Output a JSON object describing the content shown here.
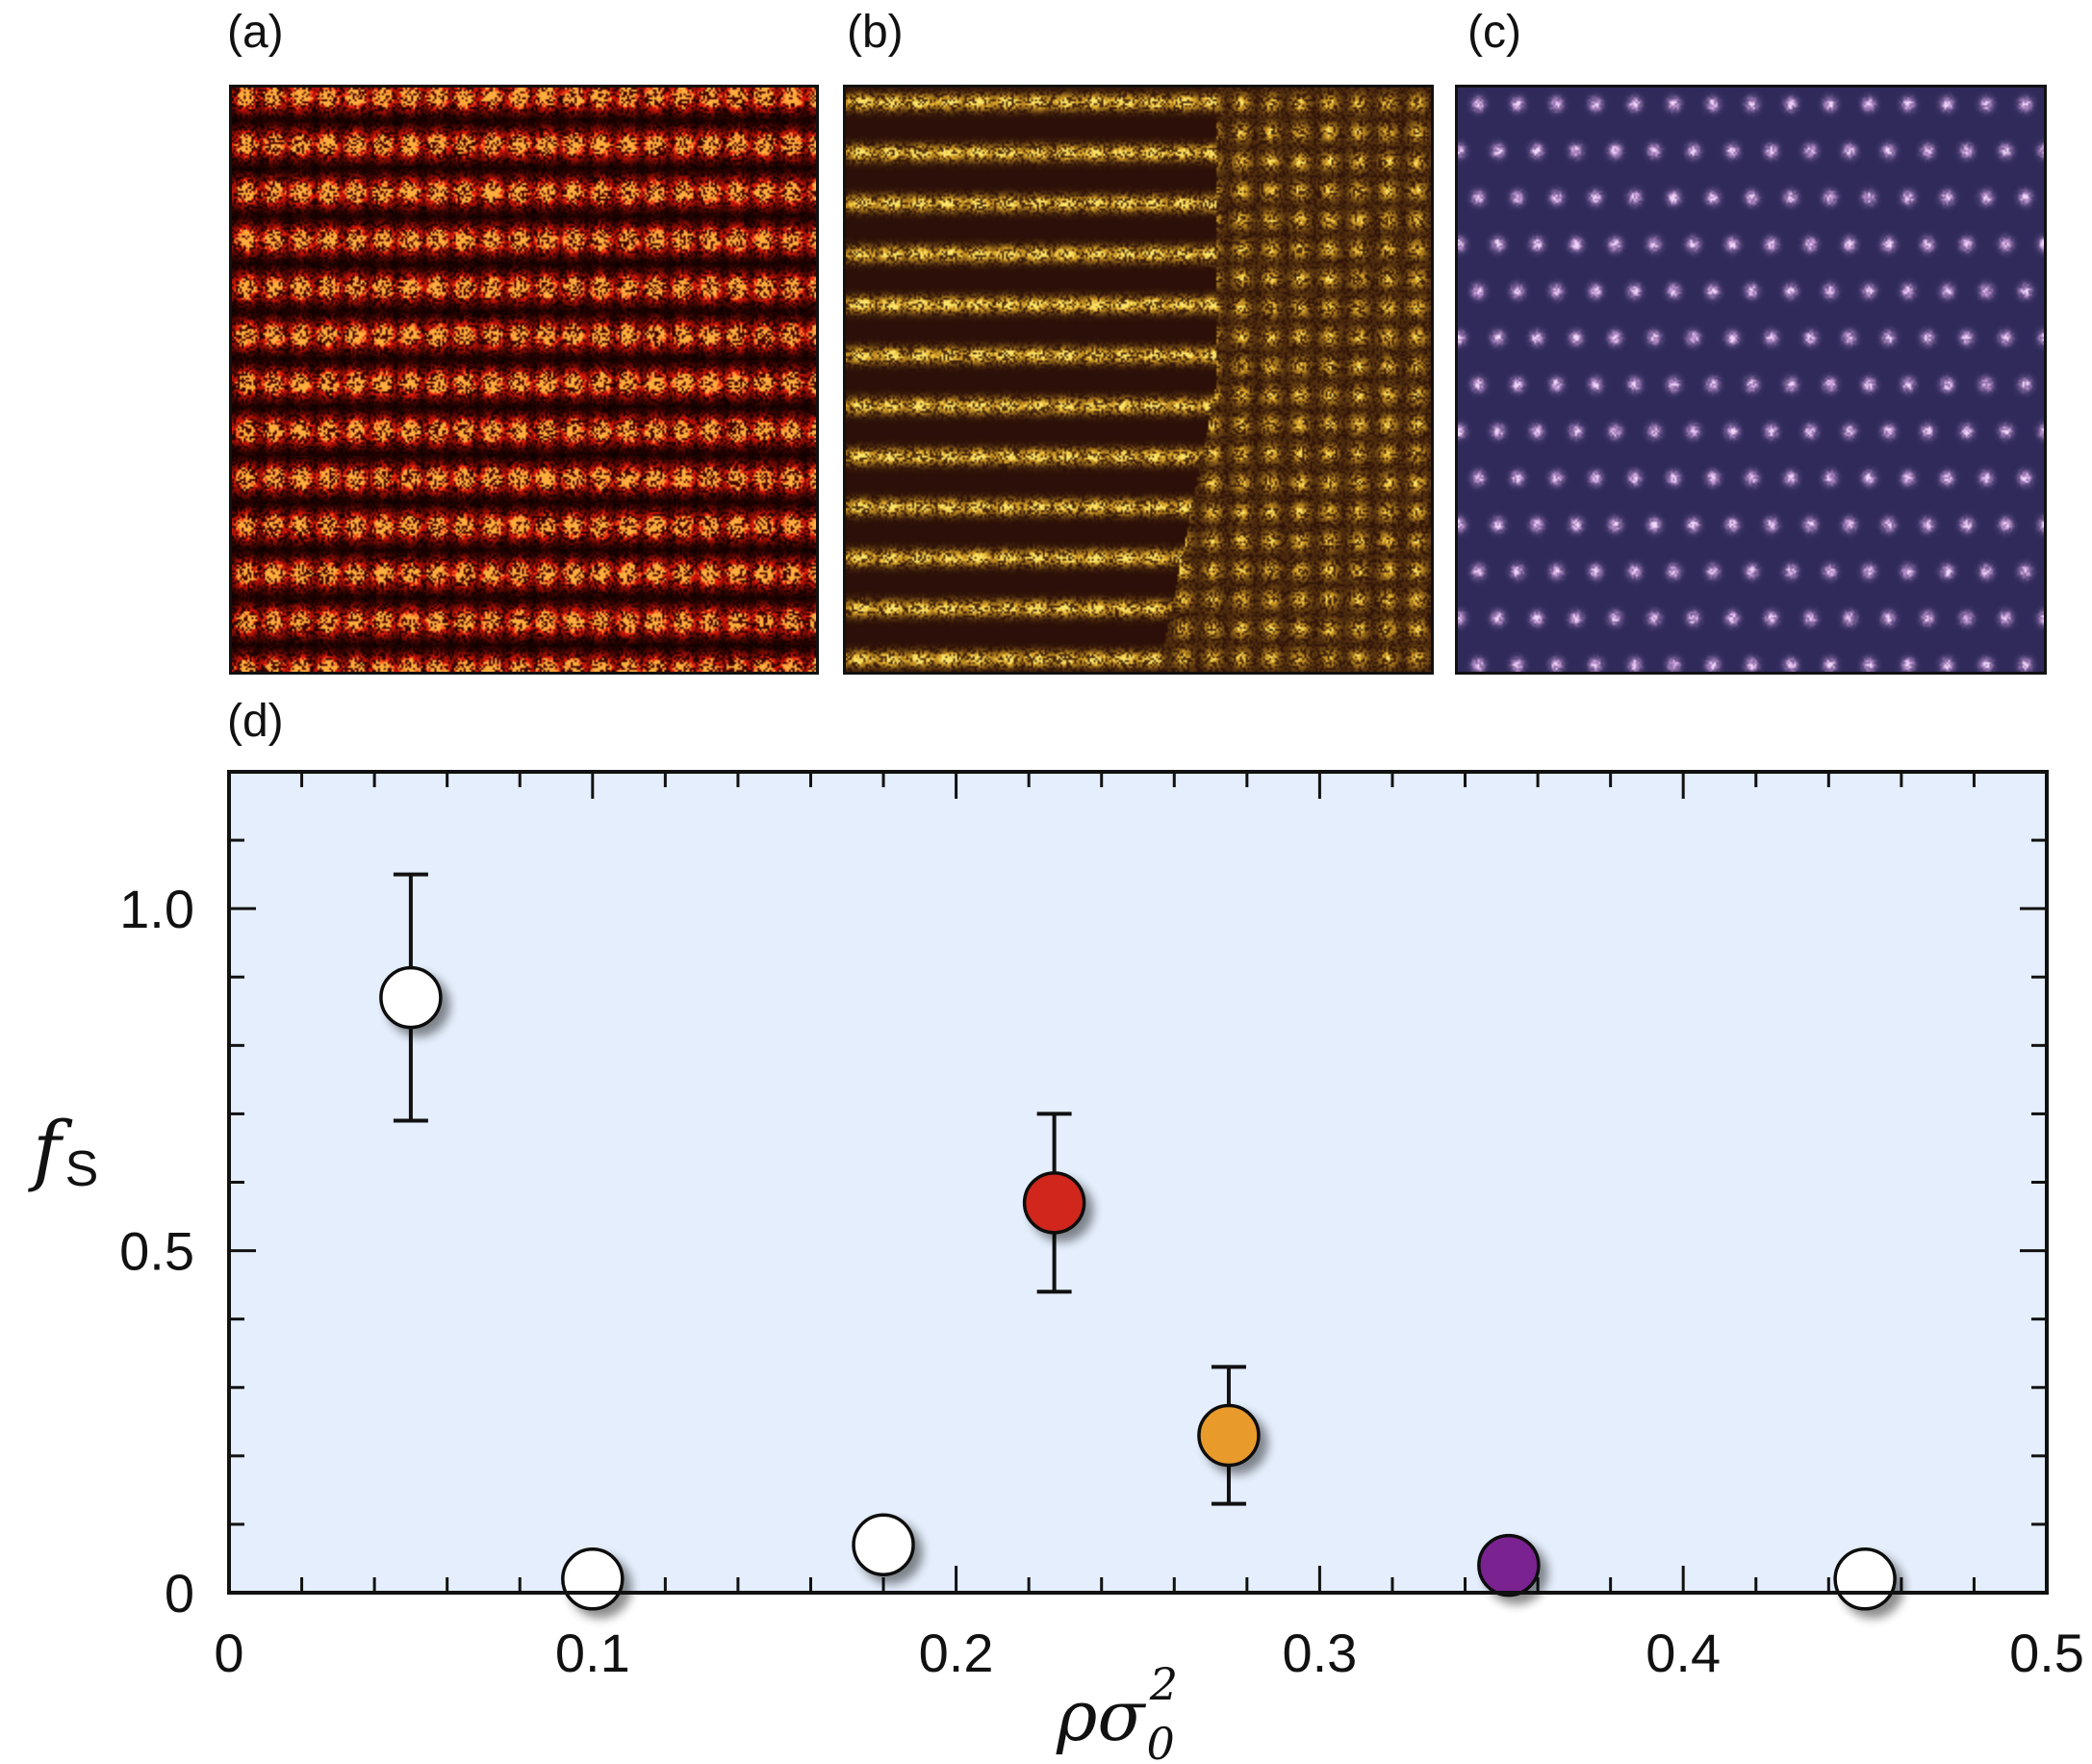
{
  "panels": {
    "a": {
      "label": "(a)",
      "base_color": "#0a0000",
      "dot_color": "#ff1a0a",
      "hot_color": "#ffd24a",
      "pattern": "square"
    },
    "b": {
      "label": "(b)",
      "base_color": "#2b0f08",
      "dot_color": "#f0b52a",
      "hot_color": "#fff27a",
      "pattern": "stripe-domains"
    },
    "c": {
      "label": "(c)",
      "base_color": "#2f2a5a",
      "dot_color": "#d9a8e6",
      "hot_color": "#f5e6ff",
      "pattern": "triangular"
    },
    "d": {
      "label": "(d)"
    }
  },
  "chart_data": {
    "type": "scatter",
    "xlabel": "ρσ",
    "xlabel_subscript": "0",
    "xlabel_superscript": "2",
    "ylabel": "f",
    "ylabel_subscript": "S",
    "xlim": [
      0,
      0.5
    ],
    "ylim": [
      0,
      1.2
    ],
    "x_ticks": [
      0,
      0.1,
      0.2,
      0.3,
      0.4,
      0.5
    ],
    "x_tick_labels": [
      "0",
      "0.1",
      "0.2",
      "0.3",
      "0.4",
      "0.5"
    ],
    "y_ticks": [
      0,
      0.5,
      1.0
    ],
    "y_tick_labels": [
      "0",
      "0.5",
      "1.0"
    ],
    "background_color": "#e4eefc",
    "points": [
      {
        "x": 0.05,
        "y": 0.87,
        "err_low": 0.69,
        "err_high": 1.05,
        "color": "#ffffff"
      },
      {
        "x": 0.1,
        "y": 0.02,
        "color": "#ffffff"
      },
      {
        "x": 0.18,
        "y": 0.07,
        "color": "#ffffff"
      },
      {
        "x": 0.227,
        "y": 0.57,
        "err_low": 0.44,
        "err_high": 0.7,
        "color": "#d0281a"
      },
      {
        "x": 0.275,
        "y": 0.23,
        "err_low": 0.13,
        "err_high": 0.33,
        "color": "#e89a2a"
      },
      {
        "x": 0.352,
        "y": 0.04,
        "color": "#7a2090"
      },
      {
        "x": 0.45,
        "y": 0.02,
        "color": "#ffffff"
      }
    ]
  }
}
